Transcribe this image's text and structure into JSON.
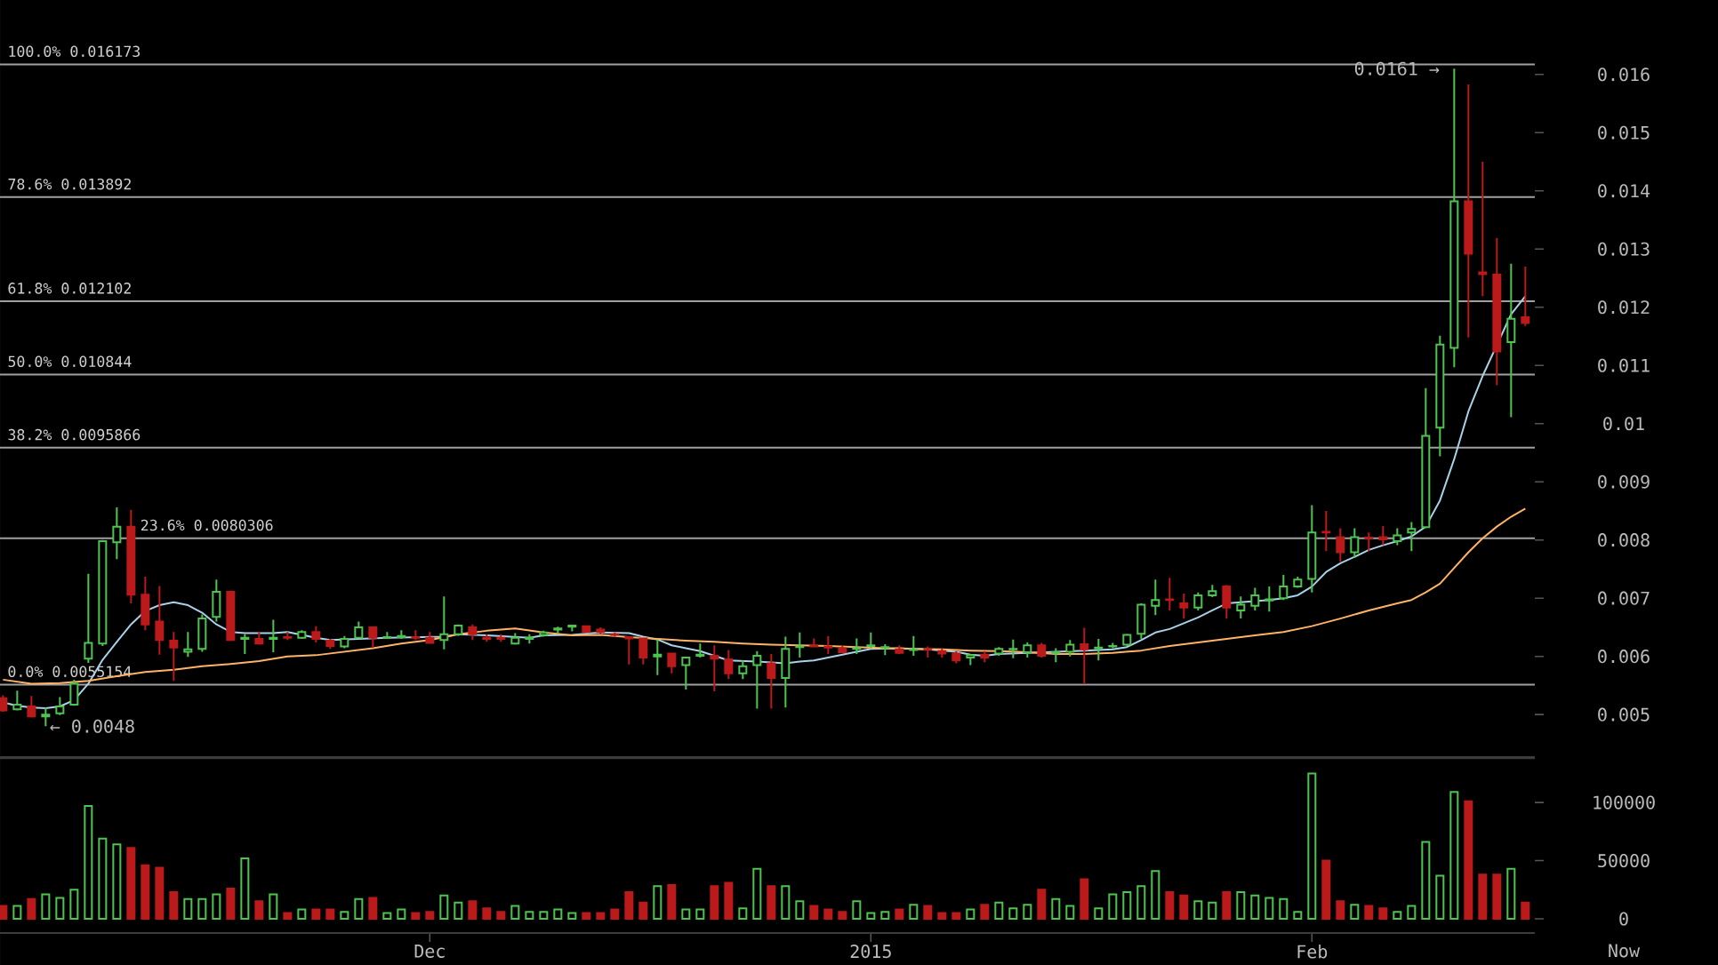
{
  "chart_data": [
    {
      "type": "candlestick",
      "x": [
        "2014-11-01",
        "2014-11-02",
        "2014-11-03",
        "2014-11-04",
        "2014-11-05",
        "2014-11-06",
        "2014-11-07",
        "2014-11-08",
        "2014-11-09",
        "2014-11-10",
        "2014-11-11",
        "2014-11-12",
        "2014-11-13",
        "2014-11-14",
        "2014-11-15",
        "2014-11-16",
        "2014-11-17",
        "2014-11-18",
        "2014-11-19",
        "2014-11-20",
        "2014-11-21",
        "2014-11-22",
        "2014-11-23",
        "2014-11-24",
        "2014-11-25",
        "2014-11-26",
        "2014-11-27",
        "2014-11-28",
        "2014-11-29",
        "2014-11-30",
        "2014-12-01",
        "2014-12-02",
        "2014-12-03",
        "2014-12-04",
        "2014-12-05",
        "2014-12-06",
        "2014-12-07",
        "2014-12-08",
        "2014-12-09",
        "2014-12-10",
        "2014-12-11",
        "2014-12-12",
        "2014-12-13",
        "2014-12-14",
        "2014-12-15",
        "2014-12-16",
        "2014-12-17",
        "2014-12-18",
        "2014-12-19",
        "2014-12-20",
        "2014-12-21",
        "2014-12-22",
        "2014-12-23",
        "2014-12-24",
        "2014-12-25",
        "2014-12-26",
        "2014-12-27",
        "2014-12-28",
        "2014-12-29",
        "2014-12-30",
        "2014-12-31",
        "2015-01-01",
        "2015-01-02",
        "2015-01-03",
        "2015-01-04",
        "2015-01-05",
        "2015-01-06",
        "2015-01-07",
        "2015-01-08",
        "2015-01-09",
        "2015-01-10",
        "2015-01-11",
        "2015-01-12",
        "2015-01-13",
        "2015-01-14",
        "2015-01-15",
        "2015-01-16",
        "2015-01-17",
        "2015-01-18",
        "2015-01-19",
        "2015-01-20",
        "2015-01-21",
        "2015-01-22",
        "2015-01-23",
        "2015-01-24",
        "2015-01-25",
        "2015-01-26",
        "2015-01-27",
        "2015-01-28",
        "2015-01-29",
        "2015-01-30",
        "2015-01-31",
        "2015-02-01",
        "2015-02-02",
        "2015-02-03",
        "2015-02-04",
        "2015-02-05",
        "2015-02-06",
        "2015-02-07",
        "2015-02-08",
        "2015-02-09",
        "2015-02-10",
        "2015-02-11",
        "2015-02-12",
        "2015-02-13",
        "2015-02-14",
        "2015-02-15",
        "2015-02-16"
      ],
      "ohlc": [
        [
          0.00528,
          0.00533,
          0.00505,
          0.00507
        ],
        [
          0.00509,
          0.00541,
          0.00507,
          0.00517
        ],
        [
          0.00514,
          0.00532,
          0.00495,
          0.00497
        ],
        [
          0.00497,
          0.00512,
          0.0048,
          0.005
        ],
        [
          0.00502,
          0.0053,
          0.00499,
          0.00514
        ],
        [
          0.00517,
          0.0056,
          0.00515,
          0.00553
        ],
        [
          0.00596,
          0.00742,
          0.00589,
          0.00623
        ],
        [
          0.00622,
          0.008,
          0.00618,
          0.00798
        ],
        [
          0.00796,
          0.00856,
          0.00767,
          0.00823
        ],
        [
          0.00823,
          0.00852,
          0.00691,
          0.00706
        ],
        [
          0.00706,
          0.00737,
          0.00645,
          0.00655
        ],
        [
          0.0066,
          0.00721,
          0.00603,
          0.00628
        ],
        [
          0.00627,
          0.00642,
          0.00558,
          0.00615
        ],
        [
          0.00608,
          0.00642,
          0.00599,
          0.00612
        ],
        [
          0.00613,
          0.00672,
          0.00608,
          0.00665
        ],
        [
          0.00668,
          0.00732,
          0.0066,
          0.00711
        ],
        [
          0.00711,
          0.00713,
          0.00628,
          0.00628
        ],
        [
          0.0063,
          0.00638,
          0.00604,
          0.00632
        ],
        [
          0.0063,
          0.00642,
          0.0062,
          0.00622
        ],
        [
          0.0063,
          0.00663,
          0.00607,
          0.00632
        ],
        [
          0.00633,
          0.00642,
          0.00628,
          0.00632
        ],
        [
          0.00632,
          0.00645,
          0.0063,
          0.00642
        ],
        [
          0.00642,
          0.00652,
          0.00624,
          0.0063
        ],
        [
          0.00627,
          0.0063,
          0.00613,
          0.00618
        ],
        [
          0.00617,
          0.00635,
          0.00614,
          0.0063
        ],
        [
          0.00632,
          0.0066,
          0.00632,
          0.0065
        ],
        [
          0.0065,
          0.0065,
          0.00615,
          0.00632
        ],
        [
          0.00632,
          0.00642,
          0.0063,
          0.00633
        ],
        [
          0.00633,
          0.00645,
          0.0063,
          0.00635
        ],
        [
          0.00633,
          0.00645,
          0.00628,
          0.00632
        ],
        [
          0.00632,
          0.00642,
          0.00622,
          0.00623
        ],
        [
          0.00628,
          0.00703,
          0.00612,
          0.00638
        ],
        [
          0.00638,
          0.00655,
          0.00635,
          0.00653
        ],
        [
          0.0065,
          0.00655,
          0.00628,
          0.00638
        ],
        [
          0.00632,
          0.00638,
          0.00625,
          0.0063
        ],
        [
          0.00632,
          0.00638,
          0.00625,
          0.0063
        ],
        [
          0.00622,
          0.0064,
          0.0062,
          0.00632
        ],
        [
          0.0063,
          0.00638,
          0.00622,
          0.00632
        ],
        [
          0.00637,
          0.00644,
          0.00634,
          0.00641
        ],
        [
          0.00646,
          0.00651,
          0.00639,
          0.00648
        ],
        [
          0.00651,
          0.00653,
          0.00643,
          0.00653
        ],
        [
          0.00652,
          0.00652,
          0.00642,
          0.00642
        ],
        [
          0.00646,
          0.0065,
          0.00639,
          0.00642
        ],
        [
          0.00638,
          0.00641,
          0.00634,
          0.00637
        ],
        [
          0.00633,
          0.00633,
          0.00586,
          0.00631
        ],
        [
          0.00631,
          0.00631,
          0.00586,
          0.00598
        ],
        [
          0.006,
          0.00629,
          0.00568,
          0.00603
        ],
        [
          0.00605,
          0.00605,
          0.00571,
          0.00583
        ],
        [
          0.00585,
          0.00598,
          0.00543,
          0.00598
        ],
        [
          0.00601,
          0.00622,
          0.00598,
          0.00603
        ],
        [
          0.00601,
          0.00619,
          0.0054,
          0.00596
        ],
        [
          0.00595,
          0.00611,
          0.00561,
          0.00571
        ],
        [
          0.00571,
          0.00593,
          0.00561,
          0.00583
        ],
        [
          0.00585,
          0.00609,
          0.0051,
          0.00601
        ],
        [
          0.00588,
          0.00604,
          0.0051,
          0.00563
        ],
        [
          0.00563,
          0.00634,
          0.00512,
          0.00613
        ],
        [
          0.00616,
          0.00641,
          0.00598,
          0.00617
        ],
        [
          0.00619,
          0.00631,
          0.00617,
          0.00617
        ],
        [
          0.00617,
          0.00635,
          0.00604,
          0.00615
        ],
        [
          0.00614,
          0.00619,
          0.00607,
          0.00607
        ],
        [
          0.00613,
          0.00631,
          0.00604,
          0.00614
        ],
        [
          0.00618,
          0.00641,
          0.00614,
          0.00619
        ],
        [
          0.00615,
          0.00621,
          0.00602,
          0.00616
        ],
        [
          0.00612,
          0.00619,
          0.00604,
          0.00606
        ],
        [
          0.00611,
          0.00635,
          0.00601,
          0.00612
        ],
        [
          0.00613,
          0.00617,
          0.00598,
          0.00612
        ],
        [
          0.00609,
          0.00614,
          0.00598,
          0.00605
        ],
        [
          0.00605,
          0.00609,
          0.00588,
          0.00593
        ],
        [
          0.00598,
          0.00604,
          0.00585,
          0.00602
        ],
        [
          0.00603,
          0.00609,
          0.0059,
          0.00598
        ],
        [
          0.00605,
          0.00616,
          0.00601,
          0.00613
        ],
        [
          0.00612,
          0.00629,
          0.00597,
          0.00613
        ],
        [
          0.00607,
          0.00624,
          0.00598,
          0.00619
        ],
        [
          0.00619,
          0.00623,
          0.00598,
          0.00601
        ],
        [
          0.00606,
          0.00614,
          0.0059,
          0.00607
        ],
        [
          0.00608,
          0.00628,
          0.006,
          0.0062
        ],
        [
          0.00621,
          0.00649,
          0.00552,
          0.00612
        ],
        [
          0.00614,
          0.0063,
          0.00593,
          0.00615
        ],
        [
          0.00617,
          0.00623,
          0.00614,
          0.00618
        ],
        [
          0.0062,
          0.00639,
          0.00618,
          0.00637
        ],
        [
          0.00639,
          0.00691,
          0.0063,
          0.00689
        ],
        [
          0.00687,
          0.00732,
          0.00671,
          0.00697
        ],
        [
          0.00698,
          0.00735,
          0.00679,
          0.00697
        ],
        [
          0.00691,
          0.00708,
          0.00665,
          0.00684
        ],
        [
          0.00684,
          0.0071,
          0.00679,
          0.00705
        ],
        [
          0.00705,
          0.00723,
          0.00702,
          0.00712
        ],
        [
          0.0072,
          0.00723,
          0.00665,
          0.00684
        ],
        [
          0.00679,
          0.00703,
          0.00665,
          0.00689
        ],
        [
          0.00687,
          0.00718,
          0.00679,
          0.00705
        ],
        [
          0.00696,
          0.0072,
          0.00677,
          0.00698
        ],
        [
          0.007,
          0.0074,
          0.00697,
          0.0072
        ],
        [
          0.0072,
          0.00737,
          0.00718,
          0.00732
        ],
        [
          0.00733,
          0.0086,
          0.0071,
          0.00813
        ],
        [
          0.00814,
          0.0085,
          0.00781,
          0.00813
        ],
        [
          0.00805,
          0.0082,
          0.00763,
          0.00779
        ],
        [
          0.00779,
          0.0082,
          0.00769,
          0.00805
        ],
        [
          0.00804,
          0.00813,
          0.00781,
          0.00803
        ],
        [
          0.00805,
          0.00824,
          0.00791,
          0.00801
        ],
        [
          0.00798,
          0.0082,
          0.00791,
          0.00808
        ],
        [
          0.00813,
          0.00831,
          0.00781,
          0.00819
        ],
        [
          0.00822,
          0.01061,
          0.0082,
          0.00979
        ],
        [
          0.00993,
          0.01151,
          0.00944,
          0.01136
        ],
        [
          0.0113,
          0.0161,
          0.01097,
          0.01382
        ],
        [
          0.01382,
          0.01583,
          0.01148,
          0.01292
        ],
        [
          0.0126,
          0.0145,
          0.01219,
          0.01257
        ],
        [
          0.01256,
          0.01319,
          0.01066,
          0.01124
        ],
        [
          0.0114,
          0.01275,
          0.01011,
          0.0118
        ],
        [
          0.01183,
          0.0127,
          0.01168,
          0.01173
        ]
      ],
      "colors": [
        "#bb1a1a",
        "#4fc34f",
        "#bb1a1a",
        "#4fc34f",
        "#4fc34f",
        "#4fc34f",
        "#4fc34f",
        "#4fc34f",
        "#4fc34f",
        "#bb1a1a",
        "#bb1a1a",
        "#bb1a1a",
        "#bb1a1a",
        "#4fc34f",
        "#4fc34f",
        "#4fc34f",
        "#bb1a1a",
        "#4fc34f",
        "#bb1a1a",
        "#4fc34f",
        "#bb1a1a",
        "#4fc34f",
        "#bb1a1a",
        "#bb1a1a",
        "#4fc34f",
        "#4fc34f",
        "#bb1a1a",
        "#4fc34f",
        "#4fc34f",
        "#bb1a1a",
        "#bb1a1a",
        "#4fc34f",
        "#4fc34f",
        "#bb1a1a",
        "#bb1a1a",
        "#bb1a1a",
        "#4fc34f",
        "#4fc34f",
        "#4fc34f",
        "#4fc34f",
        "#4fc34f",
        "#bb1a1a",
        "#bb1a1a",
        "#bb1a1a",
        "#bb1a1a",
        "#bb1a1a",
        "#4fc34f",
        "#bb1a1a",
        "#4fc34f",
        "#4fc34f",
        "#bb1a1a",
        "#bb1a1a",
        "#4fc34f",
        "#4fc34f",
        "#bb1a1a",
        "#4fc34f",
        "#4fc34f",
        "#bb1a1a",
        "#bb1a1a",
        "#bb1a1a",
        "#4fc34f",
        "#4fc34f",
        "#4fc34f",
        "#bb1a1a",
        "#4fc34f",
        "#bb1a1a",
        "#bb1a1a",
        "#bb1a1a",
        "#4fc34f",
        "#bb1a1a",
        "#4fc34f",
        "#4fc34f",
        "#4fc34f",
        "#bb1a1a",
        "#4fc34f",
        "#4fc34f",
        "#bb1a1a",
        "#4fc34f",
        "#4fc34f",
        "#4fc34f",
        "#4fc34f",
        "#4fc34f",
        "#bb1a1a",
        "#bb1a1a",
        "#4fc34f",
        "#4fc34f",
        "#bb1a1a",
        "#4fc34f",
        "#4fc34f",
        "#4fc34f",
        "#4fc34f",
        "#4fc34f",
        "#4fc34f",
        "#bb1a1a",
        "#bb1a1a",
        "#4fc34f",
        "#bb1a1a",
        "#bb1a1a",
        "#4fc34f",
        "#4fc34f",
        "#4fc34f",
        "#4fc34f",
        "#4fc34f",
        "#bb1a1a",
        "#bb1a1a",
        "#bb1a1a",
        "#4fc34f",
        "#bb1a1a"
      ],
      "series": [
        {
          "type": "line",
          "color": "#a8d1ea",
          "x": [
            "2014-11-01",
            "2014-11-02",
            "2014-11-03",
            "2014-11-04",
            "2014-11-05",
            "2014-11-06",
            "2014-11-07",
            "2014-11-08",
            "2014-11-09",
            "2014-11-10",
            "2014-11-11",
            "2014-11-12",
            "2014-11-13",
            "2014-11-14",
            "2014-11-15",
            "2014-11-16",
            "2014-11-17",
            "2014-11-18",
            "2014-11-20",
            "2014-11-21",
            "2014-11-23",
            "2014-11-24",
            "2014-11-28",
            "2014-12-02",
            "2014-12-03",
            "2014-12-05",
            "2014-12-08",
            "2014-12-09",
            "2014-12-11",
            "2014-12-13",
            "2014-12-15",
            "2014-12-16",
            "2014-12-17",
            "2014-12-18",
            "2014-12-19",
            "2014-12-20",
            "2014-12-21",
            "2014-12-22",
            "2014-12-24",
            "2014-12-26",
            "2014-12-27",
            "2014-12-28",
            "2014-12-29",
            "2014-12-30",
            "2014-12-31",
            "2015-01-01",
            "2015-01-03",
            "2015-01-05",
            "2015-01-07",
            "2015-01-08",
            "2015-01-09",
            "2015-01-10",
            "2015-01-12",
            "2015-01-14",
            "2015-01-16",
            "2015-01-18",
            "2015-01-19",
            "2015-01-20",
            "2015-01-21",
            "2015-01-22",
            "2015-01-23",
            "2015-01-24",
            "2015-01-25",
            "2015-01-26",
            "2015-01-27",
            "2015-01-28",
            "2015-01-29",
            "2015-01-30",
            "2015-01-31",
            "2015-02-01",
            "2015-02-02",
            "2015-02-03",
            "2015-02-04",
            "2015-02-05",
            "2015-02-06",
            "2015-02-07",
            "2015-02-08",
            "2015-02-09",
            "2015-02-10",
            "2015-02-11",
            "2015-02-12",
            "2015-02-13",
            "2015-02-15",
            "2015-02-16"
          ],
          "values": [
            0.00521,
            0.00515,
            0.00512,
            0.00511,
            0.00514,
            0.00525,
            0.00553,
            0.00594,
            0.00625,
            0.00655,
            0.00678,
            0.00688,
            0.00693,
            0.00688,
            0.00675,
            0.00655,
            0.00642,
            0.0064,
            0.0064,
            0.00642,
            0.00632,
            0.00628,
            0.00632,
            0.00634,
            0.00638,
            0.00636,
            0.00632,
            0.00636,
            0.00637,
            0.00641,
            0.0064,
            0.00634,
            0.00629,
            0.00619,
            0.00614,
            0.00609,
            0.00601,
            0.00593,
            0.00591,
            0.00588,
            0.00591,
            0.00593,
            0.00598,
            0.00603,
            0.00608,
            0.00613,
            0.00614,
            0.00612,
            0.00608,
            0.00603,
            0.00601,
            0.00604,
            0.00606,
            0.00608,
            0.0061,
            0.00612,
            0.00616,
            0.00628,
            0.00641,
            0.00647,
            0.00657,
            0.00667,
            0.00679,
            0.00691,
            0.00693,
            0.00695,
            0.00697,
            0.007,
            0.00705,
            0.0072,
            0.00745,
            0.0076,
            0.00771,
            0.00783,
            0.00791,
            0.00798,
            0.00806,
            0.00823,
            0.00868,
            0.00939,
            0.01021,
            0.01082,
            0.01188,
            0.01219
          ]
        },
        {
          "type": "line",
          "color": "#ffb366",
          "x": [
            "2014-11-01",
            "2014-11-03",
            "2014-11-05",
            "2014-11-07",
            "2014-11-09",
            "2014-11-11",
            "2014-11-13",
            "2014-11-15",
            "2014-11-17",
            "2014-11-19",
            "2014-11-21",
            "2014-11-23",
            "2014-11-25",
            "2014-11-27",
            "2014-11-29",
            "2014-12-01",
            "2014-12-03",
            "2014-12-05",
            "2014-12-07",
            "2014-12-09",
            "2014-12-11",
            "2014-12-13",
            "2014-12-15",
            "2014-12-17",
            "2014-12-19",
            "2014-12-21",
            "2014-12-23",
            "2014-12-25",
            "2014-12-27",
            "2014-12-29",
            "2014-12-31",
            "2015-01-02",
            "2015-01-04",
            "2015-01-06",
            "2015-01-08",
            "2015-01-10",
            "2015-01-12",
            "2015-01-14",
            "2015-01-16",
            "2015-01-18",
            "2015-01-20",
            "2015-01-22",
            "2015-01-24",
            "2015-01-26",
            "2015-01-28",
            "2015-01-30",
            "2015-02-01",
            "2015-02-03",
            "2015-02-05",
            "2015-02-07",
            "2015-02-08",
            "2015-02-09",
            "2015-02-10",
            "2015-02-11",
            "2015-02-12",
            "2015-02-13",
            "2015-02-14",
            "2015-02-15",
            "2015-02-16"
          ],
          "values": [
            0.0056,
            0.00553,
            0.00554,
            0.00558,
            0.00566,
            0.00573,
            0.00577,
            0.00583,
            0.00587,
            0.00592,
            0.006,
            0.00602,
            0.00608,
            0.00614,
            0.00622,
            0.00628,
            0.00638,
            0.00644,
            0.00648,
            0.00641,
            0.00636,
            0.00637,
            0.00633,
            0.0063,
            0.00627,
            0.00625,
            0.00622,
            0.0062,
            0.00619,
            0.00618,
            0.00616,
            0.00614,
            0.00613,
            0.00612,
            0.0061,
            0.00609,
            0.00607,
            0.00604,
            0.00604,
            0.00606,
            0.0061,
            0.00618,
            0.00624,
            0.0063,
            0.00636,
            0.00642,
            0.00652,
            0.00665,
            0.00679,
            0.00691,
            0.00697,
            0.0071,
            0.00725,
            0.00752,
            0.00779,
            0.00803,
            0.00823,
            0.0084,
            0.00854
          ]
        }
      ],
      "xlim": [
        "2014-10-31T19:00",
        "2015-02-16T16:00"
      ],
      "ylim": [
        0.00427,
        0.01728
      ],
      "yticks": [
        0.005,
        0.006,
        0.007,
        0.008,
        0.009,
        0.01,
        0.011,
        0.012,
        0.013,
        0.014,
        0.015,
        0.016
      ],
      "tick_labels": "y",
      "ref_lines": [
        {
          "axis": "y",
          "value": 0.016173,
          "label": "100.0% 0.016173",
          "color": "#a0a0a0"
        },
        {
          "axis": "y",
          "value": 0.013892,
          "label": "78.6% 0.013892",
          "color": "#a0a0a0"
        },
        {
          "axis": "y",
          "value": 0.012102,
          "label": "61.8% 0.012102",
          "color": "#a0a0a0"
        },
        {
          "axis": "y",
          "value": 0.010844,
          "label": "50.0% 0.010844",
          "color": "#a0a0a0"
        },
        {
          "axis": "y",
          "value": 0.0095866,
          "label": "38.2% 0.0095866",
          "color": "#a0a0a0"
        },
        {
          "axis": "y",
          "value": 0.0080306,
          "label": "23.6% 0.0080306",
          "color": "#a0a0a0"
        },
        {
          "axis": "y",
          "value": 0.0055154,
          "label": "0.0% 0.0055154",
          "color": "#a0a0a0"
        }
      ],
      "annotations": [
        {
          "text": "0.0161 →",
          "x": "2015-02-11",
          "y": 0.0161
        },
        {
          "text": "← 0.0048",
          "x": "2014-11-04",
          "y": 0.0048
        }
      ]
    },
    {
      "type": "bar",
      "x": [
        "2014-11-01",
        "2014-11-02",
        "2014-11-03",
        "2014-11-04",
        "2014-11-05",
        "2014-11-06",
        "2014-11-07",
        "2014-11-08",
        "2014-11-09",
        "2014-11-10",
        "2014-11-11",
        "2014-11-12",
        "2014-11-13",
        "2014-11-14",
        "2014-11-15",
        "2014-11-16",
        "2014-11-17",
        "2014-11-18",
        "2014-11-19",
        "2014-11-20",
        "2014-11-21",
        "2014-11-22",
        "2014-11-23",
        "2014-11-24",
        "2014-11-25",
        "2014-11-26",
        "2014-11-27",
        "2014-11-28",
        "2014-11-29",
        "2014-11-30",
        "2014-12-01",
        "2014-12-02",
        "2014-12-03",
        "2014-12-04",
        "2014-12-05",
        "2014-12-06",
        "2014-12-07",
        "2014-12-08",
        "2014-12-09",
        "2014-12-10",
        "2014-12-11",
        "2014-12-12",
        "2014-12-13",
        "2014-12-14",
        "2014-12-15",
        "2014-12-16",
        "2014-12-17",
        "2014-12-18",
        "2014-12-19",
        "2014-12-20",
        "2014-12-21",
        "2014-12-22",
        "2014-12-23",
        "2014-12-24",
        "2014-12-25",
        "2014-12-26",
        "2014-12-27",
        "2014-12-28",
        "2014-12-29",
        "2014-12-30",
        "2014-12-31",
        "2015-01-01",
        "2015-01-02",
        "2015-01-03",
        "2015-01-04",
        "2015-01-05",
        "2015-01-06",
        "2015-01-07",
        "2015-01-08",
        "2015-01-09",
        "2015-01-10",
        "2015-01-11",
        "2015-01-12",
        "2015-01-13",
        "2015-01-14",
        "2015-01-15",
        "2015-01-16",
        "2015-01-17",
        "2015-01-18",
        "2015-01-19",
        "2015-01-20",
        "2015-01-21",
        "2015-01-22",
        "2015-01-23",
        "2015-01-24",
        "2015-01-25",
        "2015-01-26",
        "2015-01-27",
        "2015-01-28",
        "2015-01-29",
        "2015-01-30",
        "2015-01-31",
        "2015-02-01",
        "2015-02-02",
        "2015-02-03",
        "2015-02-04",
        "2015-02-05",
        "2015-02-06",
        "2015-02-07",
        "2015-02-08",
        "2015-02-09",
        "2015-02-10",
        "2015-02-11",
        "2015-02-12",
        "2015-02-13",
        "2015-02-14",
        "2015-02-15",
        "2015-02-16"
      ],
      "values": [
        11000,
        11000,
        17000,
        21000,
        18000,
        25000,
        97000,
        69000,
        64000,
        61000,
        46000,
        44000,
        23000,
        17000,
        17000,
        21000,
        26000,
        52000,
        15000,
        21000,
        5000,
        8000,
        8000,
        8000,
        6000,
        17000,
        18000,
        5000,
        8000,
        5000,
        6000,
        20000,
        14000,
        15000,
        9000,
        6000,
        11000,
        6000,
        6000,
        8000,
        5000,
        5000,
        5000,
        8000,
        23000,
        14000,
        28000,
        29000,
        8000,
        8000,
        28000,
        31000,
        9000,
        43000,
        28000,
        28000,
        15000,
        11000,
        8000,
        6000,
        15000,
        5000,
        6000,
        8000,
        12000,
        11000,
        5000,
        5000,
        8000,
        12000,
        14000,
        9000,
        12000,
        25000,
        17000,
        11000,
        34000,
        9000,
        21000,
        23000,
        28000,
        41000,
        23000,
        20000,
        15000,
        14000,
        23000,
        23000,
        20000,
        18000,
        17000,
        6000,
        125000,
        50000,
        15000,
        12000,
        11000,
        9000,
        6000,
        11000,
        66000,
        37000,
        109000,
        101000,
        38000,
        38000,
        43000,
        14000
      ],
      "colors": [
        "#bb1a1a",
        "#4fc34f",
        "#bb1a1a",
        "#4fc34f",
        "#4fc34f",
        "#4fc34f",
        "#4fc34f",
        "#4fc34f",
        "#4fc34f",
        "#bb1a1a",
        "#bb1a1a",
        "#bb1a1a",
        "#bb1a1a",
        "#4fc34f",
        "#4fc34f",
        "#4fc34f",
        "#bb1a1a",
        "#4fc34f",
        "#bb1a1a",
        "#4fc34f",
        "#bb1a1a",
        "#4fc34f",
        "#bb1a1a",
        "#bb1a1a",
        "#4fc34f",
        "#4fc34f",
        "#bb1a1a",
        "#4fc34f",
        "#4fc34f",
        "#bb1a1a",
        "#bb1a1a",
        "#4fc34f",
        "#4fc34f",
        "#bb1a1a",
        "#bb1a1a",
        "#bb1a1a",
        "#4fc34f",
        "#4fc34f",
        "#4fc34f",
        "#4fc34f",
        "#4fc34f",
        "#bb1a1a",
        "#bb1a1a",
        "#bb1a1a",
        "#bb1a1a",
        "#bb1a1a",
        "#4fc34f",
        "#bb1a1a",
        "#4fc34f",
        "#4fc34f",
        "#bb1a1a",
        "#bb1a1a",
        "#4fc34f",
        "#4fc34f",
        "#bb1a1a",
        "#4fc34f",
        "#4fc34f",
        "#bb1a1a",
        "#bb1a1a",
        "#bb1a1a",
        "#4fc34f",
        "#4fc34f",
        "#4fc34f",
        "#bb1a1a",
        "#4fc34f",
        "#bb1a1a",
        "#bb1a1a",
        "#bb1a1a",
        "#4fc34f",
        "#bb1a1a",
        "#4fc34f",
        "#4fc34f",
        "#4fc34f",
        "#bb1a1a",
        "#4fc34f",
        "#4fc34f",
        "#bb1a1a",
        "#4fc34f",
        "#4fc34f",
        "#4fc34f",
        "#4fc34f",
        "#4fc34f",
        "#bb1a1a",
        "#bb1a1a",
        "#4fc34f",
        "#4fc34f",
        "#bb1a1a",
        "#4fc34f",
        "#4fc34f",
        "#4fc34f",
        "#4fc34f",
        "#4fc34f",
        "#4fc34f",
        "#bb1a1a",
        "#bb1a1a",
        "#4fc34f",
        "#bb1a1a",
        "#bb1a1a",
        "#4fc34f",
        "#4fc34f",
        "#4fc34f",
        "#4fc34f",
        "#4fc34f",
        "#bb1a1a",
        "#bb1a1a",
        "#bb1a1a",
        "#4fc34f",
        "#bb1a1a"
      ],
      "xlim": [
        "2014-10-31T19:00",
        "2015-02-16T16:00"
      ],
      "ylim": [
        -12200,
        138000
      ],
      "yticks": [
        0,
        50000,
        100000
      ],
      "xticks": [
        {
          "value": "2014-12-01",
          "label": "Dec"
        },
        {
          "value": "2015-01-01",
          "label": "2015"
        },
        {
          "value": "2015-02-01",
          "label": "Feb"
        }
      ],
      "annotations": [
        "Now"
      ]
    }
  ]
}
